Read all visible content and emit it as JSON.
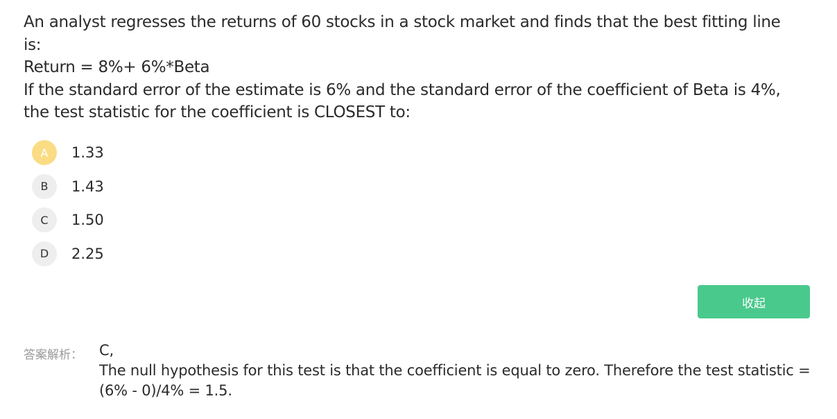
{
  "question": {
    "lines": [
      "An analyst regresses the returns of 60 stocks in a stock market and finds that the best fitting line",
      "is:",
      "Return = 8%+ 6%*Beta",
      "If the standard error of the estimate is 6% and the standard error of the coefficient of Beta is 4%,",
      "the test statistic for the coefficient is CLOSEST to:"
    ]
  },
  "options": [
    {
      "letter": "A",
      "text": "1.33",
      "selected": true
    },
    {
      "letter": "B",
      "text": "1.43",
      "selected": false
    },
    {
      "letter": "C",
      "text": "1.50",
      "selected": false
    },
    {
      "letter": "D",
      "text": "2.25",
      "selected": false
    }
  ],
  "collapse_label": "收起",
  "analysis": {
    "label": "答案解析：",
    "answer": "C,",
    "text": "The null hypothesis for this test is that the coefficient is equal to zero. Therefore the test statistic = (6% - 0)/4% = 1.5."
  },
  "colors": {
    "selected": "#fadc84",
    "button": "#49c98c"
  }
}
